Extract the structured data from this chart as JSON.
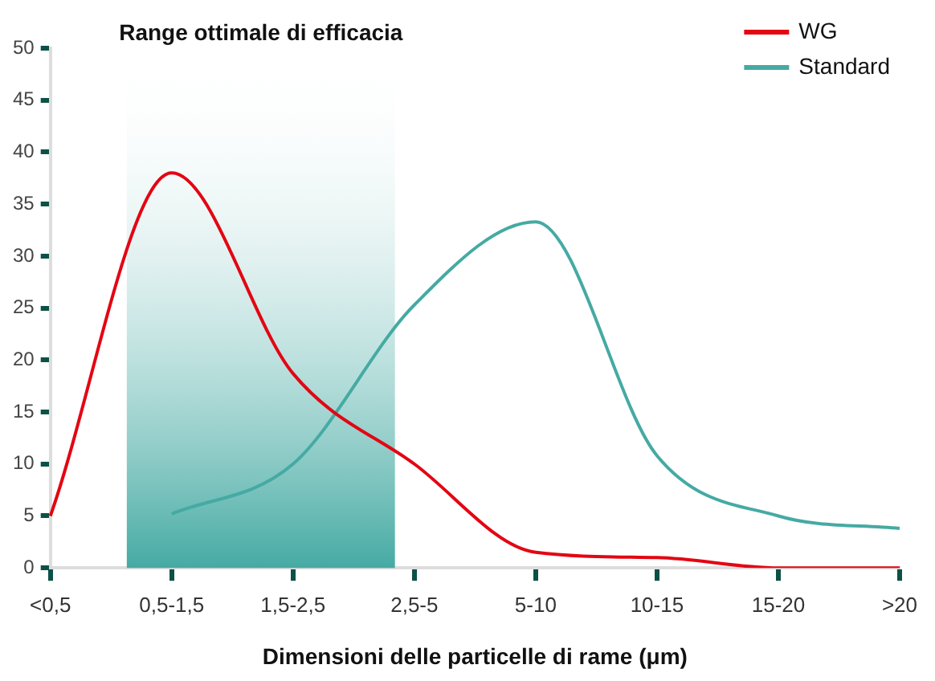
{
  "chart_data": {
    "type": "line",
    "categories": [
      "<0,5",
      "0,5-1,5",
      "1,5-2,5",
      "2,5-5",
      "5-10",
      "10-15",
      "15-20",
      ">20"
    ],
    "series": [
      {
        "name": "WG",
        "color": "#e30613",
        "values": [
          5,
          38,
          18.7,
          10,
          1.5,
          1,
          0,
          0
        ]
      },
      {
        "name": "Standard",
        "color": "#45aaa3",
        "values": [
          null,
          5.2,
          10,
          25.3,
          33.3,
          10.8,
          5,
          3.8
        ]
      }
    ],
    "xlabel": "Dimensioni delle particelle di rame (μm)",
    "ylim": [
      0,
      50
    ],
    "yticks": [
      0,
      5,
      10,
      15,
      20,
      25,
      30,
      35,
      40,
      45,
      50
    ],
    "bands": [
      {
        "axis": "x",
        "from": "0,5-1,5",
        "to": "2,5-5",
        "label": "Range ottimale di efficacia",
        "color": "#45aaa3"
      }
    ],
    "grid": false,
    "legend": "top right",
    "marker": "none",
    "line_style": "solid"
  }
}
